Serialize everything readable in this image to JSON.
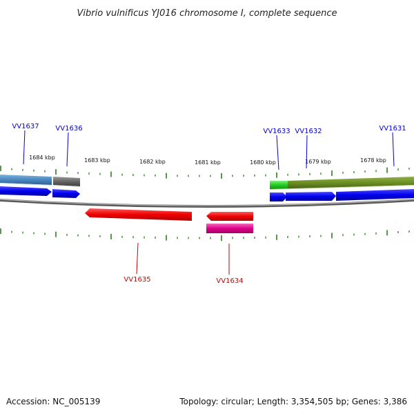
{
  "title": "Vibrio vulnificus YJ016 chromosome I, complete sequence",
  "footer": {
    "accession": "Accession: NC_005139",
    "summary": "Topology: circular; Length: 3,354,505 bp; Genes: 3,386"
  },
  "colors": {
    "label_forward": "#0000cc",
    "label_reverse": "#cc0000",
    "tick": "#2e7d1e",
    "backbone": "#808080"
  },
  "kbp_labels": [
    "1684 kbp",
    "1683 kbp",
    "1682 kbp",
    "1681 kbp",
    "1680 kbp",
    "1679 kbp",
    "1678 kbp"
  ],
  "genes": {
    "VV1637": "VV1637",
    "VV1636": "VV1636",
    "VV1633": "VV1633",
    "VV1632": "VV1632",
    "VV1631": "VV1631",
    "VV1635": "VV1635",
    "VV1634": "VV1634"
  }
}
